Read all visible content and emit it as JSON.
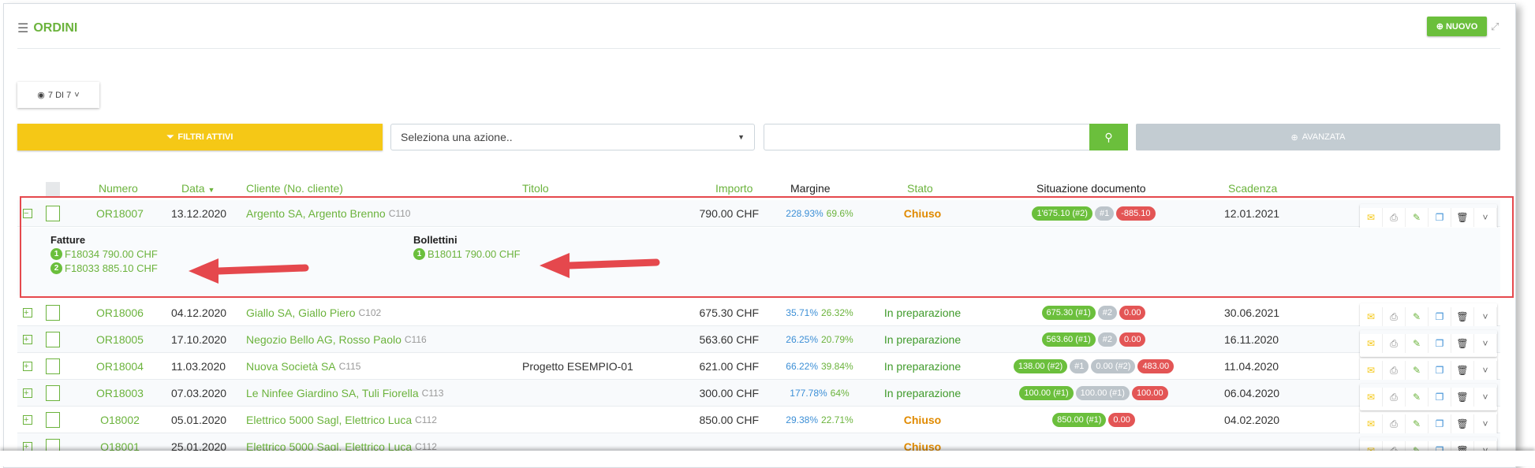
{
  "header": {
    "title": "ORDINI",
    "new_label": "NUOVO"
  },
  "toolbar": {
    "view_label": "7 DI 7",
    "filters_label": "FILTRI ATTIVI",
    "action_select": "Seleziona una azione..",
    "search_value": "",
    "advanced_label": "AVANZATA"
  },
  "columns": {
    "numero": "Numero",
    "data": "Data",
    "cliente": "Cliente (No. cliente)",
    "titolo": "Titolo",
    "importo": "Importo",
    "margine": "Margine",
    "stato": "Stato",
    "situazione": "Situazione documento",
    "scadenza": "Scadenza"
  },
  "colors": {
    "accent": "#6bb33c",
    "closed": "#e08a00",
    "badge_green": "#6bbf3c",
    "badge_grey": "#bcc4ca",
    "badge_red": "#e35555",
    "filters": "#f5c816"
  },
  "expanded": {
    "fatture_title": "Fatture",
    "fatture": [
      {
        "n": "1",
        "label": "F18034 790.00 CHF"
      },
      {
        "n": "2",
        "label": "F18033 885.10 CHF"
      }
    ],
    "bollettini_title": "Bollettini",
    "bollettini": [
      {
        "n": "1",
        "label": "B18011 790.00 CHF"
      }
    ]
  },
  "rows": [
    {
      "expanded": true,
      "numero": "OR18007",
      "data": "13.12.2020",
      "cliente": "Argento SA, Argento Brenno",
      "code": "C110",
      "titolo": "",
      "importo": "790.00 CHF",
      "m1": "228.93%",
      "m2": "69.6%",
      "stato": "Chiuso",
      "badges": [
        {
          "t": "1'675.10 (#2)",
          "c": "green"
        },
        {
          "t": "#1",
          "c": "grey"
        },
        {
          "t": "-885.10",
          "c": "red"
        }
      ],
      "scadenza": "12.01.2021"
    },
    {
      "numero": "OR18006",
      "data": "04.12.2020",
      "cliente": "Giallo SA, Giallo Piero",
      "code": "C102",
      "titolo": "",
      "importo": "675.30 CHF",
      "m1": "35.71%",
      "m2": "26.32%",
      "stato": "In preparazione",
      "badges": [
        {
          "t": "675.30 (#1)",
          "c": "green"
        },
        {
          "t": "#2",
          "c": "grey"
        },
        {
          "t": "0.00",
          "c": "red"
        }
      ],
      "scadenza": "30.06.2021"
    },
    {
      "numero": "OR18005",
      "data": "17.10.2020",
      "cliente": "Negozio Bello AG, Rosso Paolo",
      "code": "C116",
      "titolo": "",
      "importo": "563.60 CHF",
      "m1": "26.25%",
      "m2": "20.79%",
      "stato": "In preparazione",
      "badges": [
        {
          "t": "563.60 (#1)",
          "c": "green"
        },
        {
          "t": "#2",
          "c": "grey"
        },
        {
          "t": "0.00",
          "c": "red"
        }
      ],
      "scadenza": "16.11.2020"
    },
    {
      "numero": "OR18004",
      "data": "11.03.2020",
      "cliente": "Nuova Società SA",
      "code": "C115",
      "titolo": "Progetto ESEMPIO-01",
      "importo": "621.00 CHF",
      "m1": "66.22%",
      "m2": "39.84%",
      "stato": "In preparazione",
      "badges": [
        {
          "t": "138.00 (#2)",
          "c": "green"
        },
        {
          "t": "#1",
          "c": "grey"
        },
        {
          "t": "0.00 (#2)",
          "c": "grey"
        },
        {
          "t": "483.00",
          "c": "red"
        }
      ],
      "scadenza": "11.04.2020"
    },
    {
      "numero": "OR18003",
      "data": "07.03.2020",
      "cliente": "Le Ninfee Giardino SA, Tuli Fiorella",
      "code": "C113",
      "titolo": "",
      "importo": "300.00 CHF",
      "m1": "177.78%",
      "m2": "64%",
      "stato": "In preparazione",
      "badges": [
        {
          "t": "100.00 (#1)",
          "c": "green"
        },
        {
          "t": "100.00 (#1)",
          "c": "grey"
        },
        {
          "t": "100.00",
          "c": "red"
        }
      ],
      "scadenza": "06.04.2020"
    },
    {
      "numero": "O18002",
      "data": "05.01.2020",
      "cliente": "Elettrico 5000 Sagl, Elettrico Luca",
      "code": "C112",
      "titolo": "",
      "importo": "850.00 CHF",
      "m1": "29.38%",
      "m2": "22.71%",
      "stato": "Chiuso",
      "badges": [
        {
          "t": "850.00 (#1)",
          "c": "green"
        },
        {
          "t": "0.00",
          "c": "red"
        }
      ],
      "scadenza": "04.02.2020"
    },
    {
      "numero": "O18001",
      "data": "25.01.2020",
      "cliente": "Elettrico 5000 Sagl, Elettrico Luca",
      "code": "C112",
      "titolo": "",
      "importo": "",
      "m1": "",
      "m2": "",
      "stato": "Chiuso",
      "badges": [],
      "scadenza": ""
    }
  ]
}
